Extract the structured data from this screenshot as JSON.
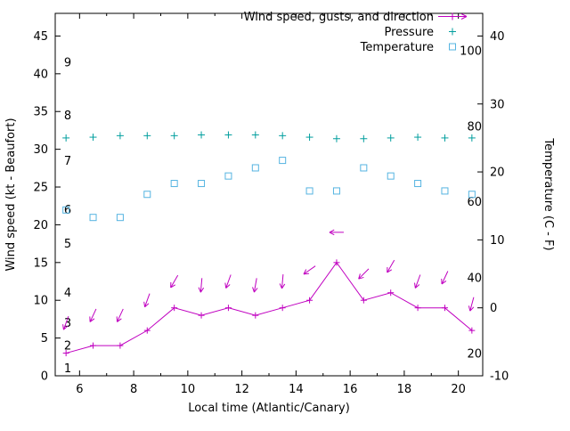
{
  "chart_data": {
    "type": "line",
    "title": "",
    "xlabel": "Local time (Atlantic/Canary)",
    "ylabel_left": "Wind speed (kt - Beaufort)",
    "ylabel_right": "Temperature (C - F)",
    "x_range": [
      5.1,
      20.9
    ],
    "left_range": [
      0,
      48
    ],
    "right_range": [
      -10,
      43.3
    ],
    "x_ticks": [
      6,
      8,
      10,
      12,
      14,
      16,
      18,
      20
    ],
    "x_minor_ticks": [
      7,
      9,
      11,
      13,
      15,
      17,
      19
    ],
    "left_ticks": [
      0,
      5,
      10,
      15,
      20,
      25,
      30,
      35,
      40,
      45
    ],
    "right_ticks": [
      -10,
      0,
      10,
      20,
      30,
      40
    ],
    "beaufort_labels": [
      {
        "label": "1",
        "kt": 1
      },
      {
        "label": "2",
        "kt": 4
      },
      {
        "label": "3",
        "kt": 7
      },
      {
        "label": "4",
        "kt": 11
      },
      {
        "label": "5",
        "kt": 17.5
      },
      {
        "label": "6",
        "kt": 22
      },
      {
        "label": "7",
        "kt": 28.5
      },
      {
        "label": "8",
        "kt": 34.5
      },
      {
        "label": "9",
        "kt": 41.5
      }
    ],
    "fahrenheit_labels": [
      {
        "label": "20",
        "c": -6.7
      },
      {
        "label": "40",
        "c": 4.4
      },
      {
        "label": "60",
        "c": 15.6
      },
      {
        "label": "80",
        "c": 26.7
      },
      {
        "label": "100",
        "c": 37.8
      }
    ],
    "x": [
      5.5,
      6.5,
      7.5,
      8.5,
      9.5,
      10.5,
      11.5,
      12.5,
      13.5,
      14.5,
      15.5,
      16.5,
      17.5,
      18.5,
      19.5,
      20.5
    ],
    "series": [
      {
        "name": "Wind speed, gusts, and direction",
        "axis": "left",
        "marker": "plus-line-arrow",
        "color": "#c000c0",
        "values": [
          3,
          4,
          4,
          6,
          9,
          8,
          9,
          8,
          9,
          10,
          15,
          10,
          11,
          9,
          9,
          6
        ],
        "gusts": [
          7,
          8,
          8,
          10,
          12.5,
          12,
          12.5,
          12,
          12.5,
          14,
          19,
          13.5,
          14.5,
          12.5,
          13,
          9.5
        ],
        "direction_deg": [
          200,
          205,
          205,
          200,
          210,
          185,
          200,
          190,
          185,
          235,
          270,
          225,
          210,
          200,
          205,
          195
        ]
      },
      {
        "name": "Pressure",
        "axis": "left",
        "marker": "plus",
        "color": "#009e9e",
        "values": [
          31.5,
          31.6,
          31.8,
          31.8,
          31.8,
          31.9,
          31.9,
          31.9,
          31.8,
          31.6,
          31.4,
          31.4,
          31.5,
          31.6,
          31.5,
          31.5
        ]
      },
      {
        "name": "Temperature",
        "axis": "right",
        "marker": "open-square",
        "color": "#55b4e1",
        "values_c": [
          14.4,
          13.3,
          13.3,
          16.7,
          18.3,
          18.3,
          19.4,
          20.6,
          21.7,
          17.2,
          17.2,
          20.6,
          19.4,
          18.3,
          17.2,
          16.7
        ]
      }
    ],
    "legend_position": "top-right-inside",
    "grid": false
  }
}
